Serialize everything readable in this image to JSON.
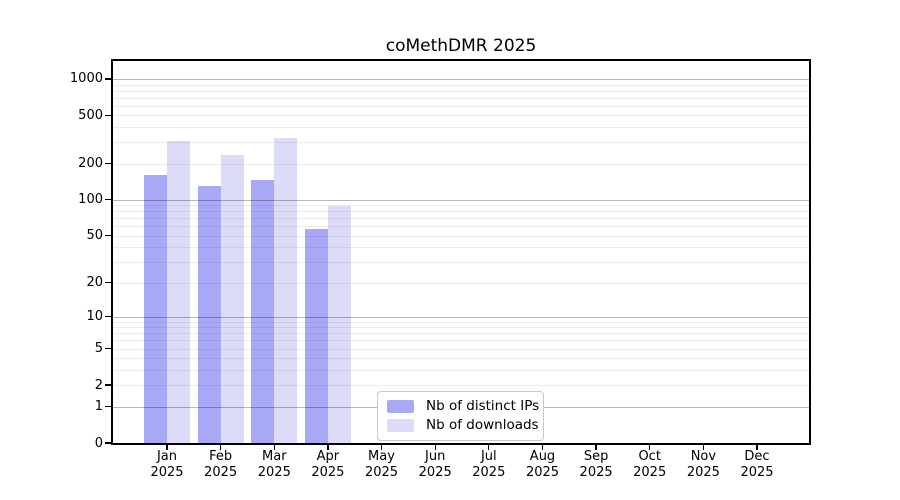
{
  "title": "coMethDMR 2025",
  "chart_data": {
    "type": "bar",
    "title": "coMethDMR 2025",
    "categories": [
      "Jan",
      "Feb",
      "Mar",
      "Apr",
      "May",
      "Jun",
      "Jul",
      "Aug",
      "Sep",
      "Oct",
      "Nov",
      "Dec"
    ],
    "year": "2025",
    "series": [
      {
        "key": "distinct-ips",
        "name": "Nb of distinct IPs",
        "color": "#a8a8f6",
        "values": [
          160,
          130,
          145,
          57,
          null,
          null,
          null,
          null,
          null,
          null,
          null,
          null
        ]
      },
      {
        "key": "downloads",
        "name": "Nb of downloads",
        "color": "#dcdcf9",
        "values": [
          310,
          235,
          325,
          88,
          null,
          null,
          null,
          null,
          null,
          null,
          null,
          null
        ]
      }
    ],
    "yscale": "log1p",
    "ylim": [
      0,
      1405
    ],
    "y_ticks": [
      0,
      1,
      2,
      5,
      10,
      20,
      50,
      100,
      200,
      500,
      1000
    ],
    "grid": "both",
    "grid_on_top_of_bars": true,
    "legend_position": "bottom-center-inside",
    "xlabel": "",
    "ylabel": ""
  },
  "colors": {
    "frame": "#000000",
    "major_grid": "rgba(0,0,0,0.28)",
    "minor_grid": "rgba(0,0,0,0.075)",
    "background": "#ffffff",
    "legend_border": "#c9c9c9"
  }
}
